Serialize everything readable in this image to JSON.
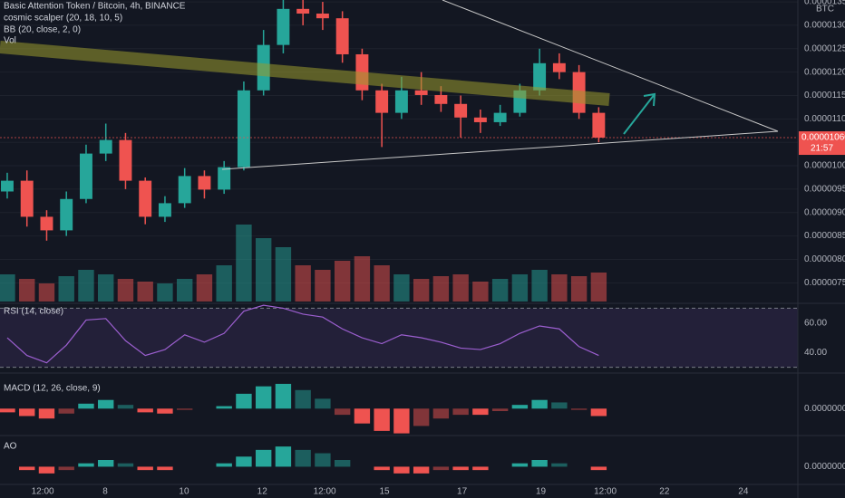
{
  "chart_data": [
    {
      "type": "candlestick",
      "title": "Basic Attention Token / Bitcoin, 4h, BINANCE",
      "indicators": [
        "cosmic scalper (20, 18, 10, 5)",
        "BB (20, close, 2, 0)",
        "Vol"
      ],
      "currency": "BTC",
      "x": [
        0,
        3,
        6,
        9,
        12,
        15,
        18,
        21,
        24,
        27,
        30,
        33,
        36,
        39,
        42,
        45,
        48,
        51,
        54,
        57,
        60,
        63,
        66,
        69,
        72,
        75,
        78,
        81,
        84,
        87,
        90
      ],
      "open": [
        9.45e-06,
        9.68e-06,
        8.91e-06,
        8.62e-06,
        9.29e-06,
        1.026e-05,
        1.055e-05,
        9.68e-06,
        8.91e-06,
        9.2e-06,
        9.78e-06,
        9.49e-06,
        9.97e-06,
        1.161e-05,
        1.258e-05,
        1.335e-05,
        1.325e-05,
        1.315e-05,
        1.238e-05,
        1.161e-05,
        1.113e-05,
        1.161e-05,
        1.151e-05,
        1.132e-05,
        1.103e-05,
        1.093e-05,
        1.113e-05,
        1.161e-05,
        1.219e-05,
        1.2e-05,
        1.113e-05
      ],
      "high": [
        9.85e-06,
        9.9e-06,
        9.05e-06,
        9.45e-06,
        1.045e-05,
        1.09e-05,
        1.07e-05,
        9.75e-06,
        9.35e-06,
        9.95e-06,
        9.9e-06,
        1.01e-05,
        1.18e-05,
        1.29e-05,
        1.36e-05,
        1.36e-05,
        1.35e-05,
        1.33e-05,
        1.25e-05,
        1.175e-05,
        1.19e-05,
        1.2e-05,
        1.17e-05,
        1.15e-05,
        1.12e-05,
        1.13e-05,
        1.175e-05,
        1.25e-05,
        1.24e-05,
        1.215e-05,
        1.125e-05
      ],
      "low": [
        9.3e-06,
        8.7e-06,
        8.4e-06,
        8.5e-06,
        9.2e-06,
        1.01e-05,
        9.5e-06,
        8.75e-06,
        8.8e-06,
        9.1e-06,
        9.3e-06,
        9.4e-06,
        9.9e-06,
        1.15e-05,
        1.24e-05,
        1.3e-05,
        1.29e-05,
        1.22e-05,
        1.14e-05,
        1.04e-05,
        1.1e-05,
        1.13e-05,
        1.115e-05,
        1.06e-05,
        1.07e-05,
        1.085e-05,
        1.105e-05,
        1.15e-05,
        1.185e-05,
        1.1e-05,
        1.05e-05
      ],
      "close": [
        9.68e-06,
        8.91e-06,
        8.62e-06,
        9.29e-06,
        1.026e-05,
        1.055e-05,
        9.68e-06,
        8.91e-06,
        9.2e-06,
        9.78e-06,
        9.49e-06,
        9.97e-06,
        1.161e-05,
        1.258e-05,
        1.335e-05,
        1.325e-05,
        1.315e-05,
        1.238e-05,
        1.161e-05,
        1.113e-05,
        1.161e-05,
        1.151e-05,
        1.132e-05,
        1.103e-05,
        1.093e-05,
        1.113e-05,
        1.161e-05,
        1.219e-05,
        1.2e-05,
        1.113e-05,
        1.06e-05
      ],
      "volume": [
        30,
        25,
        20,
        28,
        35,
        30,
        25,
        22,
        20,
        25,
        30,
        40,
        85,
        70,
        60,
        40,
        35,
        45,
        50,
        40,
        30,
        25,
        28,
        30,
        22,
        25,
        30,
        35,
        30,
        28,
        32
      ],
      "up_color": "#26a69a",
      "down_color": "#ef5350",
      "xlim": [
        -1.1,
        120.3
      ],
      "xticks": [
        {
          "value": 5.4,
          "label": "12:00"
        },
        {
          "value": 14.9,
          "label": "8"
        },
        {
          "value": 26.9,
          "label": "10"
        },
        {
          "value": 38.8,
          "label": "12"
        },
        {
          "value": 48.3,
          "label": "12:00"
        },
        {
          "value": 57.4,
          "label": "15"
        },
        {
          "value": 69.2,
          "label": "17"
        },
        {
          "value": 81.2,
          "label": "19"
        },
        {
          "value": 91,
          "label": "12:00"
        },
        {
          "value": 100,
          "label": "22"
        },
        {
          "value": 112,
          "label": "24"
        }
      ],
      "ylim": [
        7.1e-06,
        1.354e-05
      ],
      "yticks": [
        {
          "value": 7.5e-06,
          "label": "0.00000750"
        },
        {
          "value": 8e-06,
          "label": "0.00000800"
        },
        {
          "value": 8.5e-06,
          "label": "0.00000850"
        },
        {
          "value": 9e-06,
          "label": "0.00000900"
        },
        {
          "value": 9.5e-06,
          "label": "0.00000950"
        },
        {
          "value": 1e-05,
          "label": "0.00001000"
        },
        {
          "value": 1.05e-05,
          "label": "0.00001050"
        },
        {
          "value": 1.1e-05,
          "label": "0.00001100"
        },
        {
          "value": 1.15e-05,
          "label": "0.00001150"
        },
        {
          "value": 1.2e-05,
          "label": "0.00001200"
        },
        {
          "value": 1.25e-05,
          "label": "0.00001250"
        },
        {
          "value": 1.3e-05,
          "label": "0.00001300"
        },
        {
          "value": 1.35e-05,
          "label": "0.00001350"
        }
      ],
      "last_price": {
        "value": 1.06e-05,
        "label": "0.00001060"
      },
      "countdown": "21:57",
      "grid": true
    },
    {
      "type": "line",
      "title": "RSI (14, close)",
      "color": "#9c5fd0",
      "x": [
        0,
        3,
        6,
        9,
        12,
        15,
        18,
        21,
        24,
        27,
        30,
        33,
        36,
        39,
        42,
        45,
        48,
        51,
        54,
        57,
        60,
        63,
        66,
        69,
        72,
        75,
        78,
        81,
        84,
        87,
        90
      ],
      "values": [
        50,
        38,
        33,
        45,
        62,
        63,
        48,
        38,
        42,
        52,
        47,
        53,
        68,
        72,
        70,
        66,
        64,
        56,
        50,
        46,
        52,
        50,
        47,
        43,
        42,
        46,
        53,
        58,
        56,
        44,
        38
      ],
      "bands": [
        30,
        70
      ],
      "ylim": [
        26.7,
        72.1
      ],
      "yticks": [
        {
          "value": 60,
          "label": "60.00"
        },
        {
          "value": 40,
          "label": "40.00"
        }
      ]
    },
    {
      "type": "bar",
      "title": "MACD (12, 26, close, 9)",
      "up_color": "#26a69a",
      "down_color": "#ef5350",
      "x": [
        0,
        3,
        6,
        9,
        12,
        15,
        18,
        21,
        24,
        27,
        30,
        33,
        36,
        39,
        42,
        45,
        48,
        51,
        54,
        57,
        60,
        63,
        66,
        69,
        72,
        75,
        78,
        81,
        84,
        87,
        90
      ],
      "values": [
        -3e-08,
        -6e-08,
        -8e-08,
        -4e-08,
        4e-08,
        7e-08,
        3e-08,
        -3e-08,
        -4e-08,
        -1e-08,
        0,
        2e-08,
        1.2e-07,
        1.8e-07,
        2e-07,
        1.5e-07,
        8e-08,
        -5e-08,
        -1.2e-07,
        -1.8e-07,
        -2e-07,
        -1.4e-07,
        -8e-08,
        -5e-08,
        -5e-08,
        -2e-08,
        3e-08,
        7e-08,
        5e-08,
        -1e-08,
        -6e-08
      ],
      "ylim": [
        -2.1e-07,
        2.8e-07
      ],
      "yticks": [
        {
          "value": 0,
          "label": "0.00000000"
        }
      ]
    },
    {
      "type": "bar",
      "title": "AO",
      "up_color": "#26a69a",
      "down_color": "#ef5350",
      "x": [
        0,
        3,
        6,
        9,
        12,
        15,
        18,
        21,
        24,
        27,
        30,
        33,
        36,
        39,
        42,
        45,
        48,
        51,
        54,
        57,
        60,
        63,
        66,
        69,
        72,
        75,
        78,
        81,
        84,
        87,
        90
      ],
      "values": [
        0,
        -2e-08,
        -4e-08,
        -2e-08,
        2e-08,
        4e-08,
        2e-08,
        -2e-08,
        -2e-08,
        0,
        0,
        2e-08,
        6e-08,
        1e-07,
        1.2e-07,
        1e-07,
        8e-08,
        4e-08,
        0,
        -2e-08,
        -4e-08,
        -4e-08,
        -2e-08,
        -2e-08,
        -2e-08,
        0,
        2e-08,
        4e-08,
        2e-08,
        0,
        -2e-08
      ],
      "ylim": [
        -1e-07,
        1.8e-07
      ],
      "yticks": [
        {
          "value": 0,
          "label": "0.00000000"
        }
      ]
    }
  ]
}
